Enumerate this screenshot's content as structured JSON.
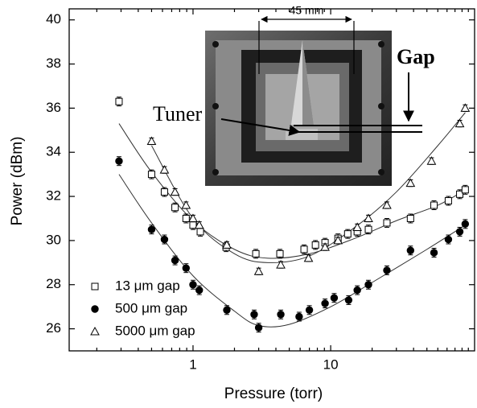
{
  "chart_data": {
    "type": "scatter",
    "xlabel": "Pressure (torr)",
    "ylabel": "Power (dBm)",
    "xscale": "log",
    "xlim": [
      0.126,
      111
    ],
    "ylim": [
      25,
      40.5
    ],
    "xticks": [
      1,
      10
    ],
    "xminorticks": [
      0.2,
      0.3,
      0.4,
      0.5,
      0.6,
      0.7,
      0.8,
      0.9,
      2,
      3,
      4,
      5,
      6,
      7,
      8,
      9,
      20,
      30,
      40,
      50,
      60,
      70,
      80,
      90,
      100
    ],
    "yticks": [
      26,
      28,
      30,
      32,
      34,
      36,
      38,
      40
    ],
    "legend": "lower left",
    "annotations": [
      "45 mm",
      "Gap",
      "Tuner"
    ],
    "series": [
      {
        "name": "13 μm gap",
        "marker": "square",
        "filled": false,
        "color": "#000000",
        "error": 0.2,
        "x": [
          0.29,
          0.5,
          0.62,
          0.74,
          0.89,
          1.0,
          1.13,
          1.74,
          2.86,
          4.28,
          6.41,
          7.75,
          9.1,
          11.3,
          13.3,
          15.6,
          18.8,
          25.6,
          38.0,
          56.3,
          71.6,
          86.6,
          94.9
        ],
        "values": [
          36.3,
          33.0,
          32.2,
          31.5,
          31.0,
          30.7,
          30.4,
          29.7,
          29.4,
          29.4,
          29.6,
          29.8,
          29.9,
          30.1,
          30.3,
          30.4,
          30.5,
          30.8,
          31.0,
          31.6,
          31.8,
          32.1,
          32.3
        ]
      },
      {
        "name": "500 μm gap",
        "marker": "circle",
        "filled": true,
        "color": "#000000",
        "error": 0.2,
        "x": [
          0.29,
          0.5,
          0.62,
          0.74,
          0.89,
          1.0,
          1.11,
          1.76,
          2.78,
          3.0,
          4.34,
          5.9,
          7.0,
          9.1,
          10.6,
          13.5,
          15.6,
          18.8,
          25.6,
          38.0,
          56.3,
          71.6,
          86.6,
          94.9
        ],
        "values": [
          33.6,
          30.5,
          30.05,
          29.1,
          28.75,
          28.0,
          27.75,
          26.85,
          26.65,
          26.05,
          26.65,
          26.55,
          26.85,
          27.15,
          27.4,
          27.3,
          27.75,
          28.0,
          28.65,
          29.55,
          29.45,
          30.05,
          30.4,
          30.75
        ]
      },
      {
        "name": "5000 μm gap",
        "marker": "triangle",
        "filled": false,
        "color": "#000000",
        "error": 0.15,
        "x": [
          0.5,
          0.62,
          0.74,
          0.89,
          1.0,
          1.11,
          1.76,
          3.0,
          4.34,
          6.9,
          9.1,
          11.3,
          15.6,
          18.8,
          25.6,
          38.0,
          54.0,
          86.6,
          94.9
        ],
        "values": [
          34.5,
          33.2,
          32.2,
          31.6,
          31.0,
          30.7,
          29.8,
          28.6,
          28.9,
          29.2,
          29.7,
          30.0,
          30.6,
          31.0,
          31.6,
          32.6,
          33.6,
          35.3,
          36.0
        ]
      }
    ],
    "fits": [
      {
        "x": [
          0.29,
          0.5,
          1,
          2,
          3.5,
          7,
          15,
          30,
          60,
          95
        ],
        "values": [
          35.3,
          33.1,
          30.9,
          29.6,
          29.2,
          29.4,
          30.1,
          30.9,
          31.6,
          32.3
        ]
      },
      {
        "x": [
          0.29,
          0.5,
          1,
          2,
          3,
          5,
          10,
          20,
          50,
          95
        ],
        "values": [
          33.0,
          30.8,
          28.4,
          26.8,
          26.15,
          26.2,
          27.0,
          28.1,
          29.6,
          30.7
        ]
      },
      {
        "x": [
          0.5,
          1,
          2,
          3.5,
          7,
          15,
          30,
          60,
          95
        ],
        "values": [
          34.3,
          31.0,
          29.4,
          29.0,
          29.3,
          30.6,
          32.2,
          34.3,
          35.8
        ]
      }
    ]
  }
}
